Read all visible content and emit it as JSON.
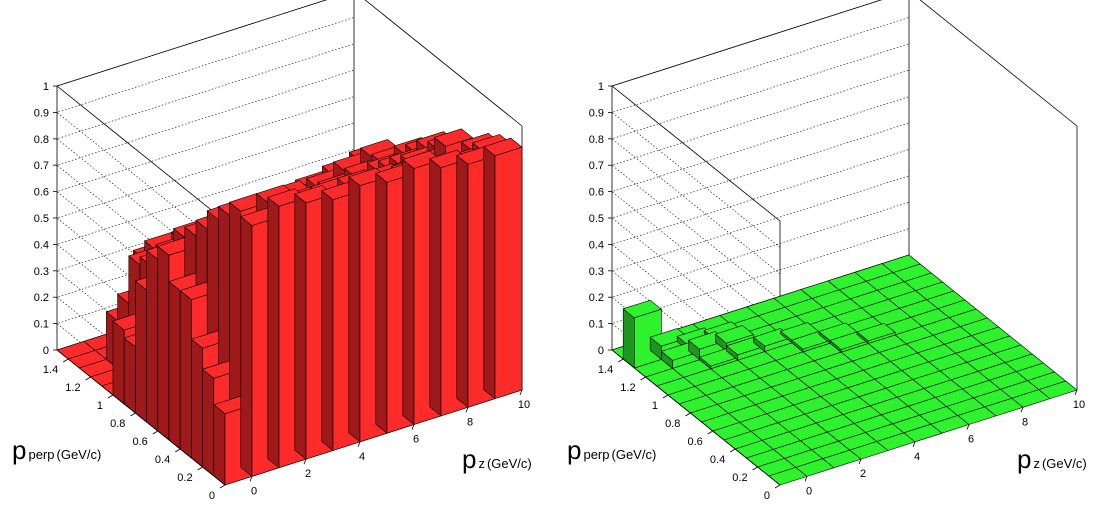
{
  "chart_data": [
    {
      "type": "lego3d",
      "xlabel": {
        "base": "p",
        "sub": "z",
        "unit": "(GeV/c)"
      },
      "ylabel": {
        "base": "p",
        "sub": "perp",
        "unit": "(GeV/c)"
      },
      "x_ticks": [
        "0",
        "2",
        "4",
        "6",
        "8",
        "10"
      ],
      "y_ticks": [
        "0",
        "0.2",
        "0.4",
        "0.6",
        "0.8",
        "1",
        "1.2",
        "1.4"
      ],
      "z_ticks": [
        "0",
        "0.1",
        "0.2",
        "0.3",
        "0.4",
        "0.5",
        "0.6",
        "0.7",
        "0.8",
        "0.9",
        "1"
      ],
      "xlim": [
        -1,
        10
      ],
      "ylim": [
        0,
        1.5
      ],
      "zlim": [
        0,
        1
      ],
      "color": "#ff2a2a",
      "grid": true,
      "values": [
        [
          0.27,
          0.95,
          0.99,
          0.97,
          0.95,
          0.97,
          0.95,
          0.97,
          0.94,
          0.92,
          0.92
        ],
        [
          0.37,
          0.97,
          0.97,
          0.93,
          0.93,
          0.93,
          0.92,
          0.91,
          0.88,
          0.88,
          0.9
        ],
        [
          0.45,
          0.92,
          0.92,
          0.92,
          0.85,
          0.86,
          0.8,
          0.84,
          0.78,
          0.92,
          0.87
        ],
        [
          0.6,
          0.87,
          0.87,
          0.82,
          0.78,
          0.72,
          0.78,
          0.7,
          0.79,
          0.8,
          0.8
        ],
        [
          0.6,
          0.8,
          0.78,
          0.74,
          0.72,
          0.7,
          0.7,
          0.73,
          0.77,
          0.78,
          0.78
        ],
        [
          0.7,
          0.74,
          0.73,
          0.7,
          0.67,
          0.65,
          0.66,
          0.69,
          0.7,
          0.75,
          0.77
        ],
        [
          0.65,
          0.7,
          0.68,
          0.65,
          0.62,
          0.6,
          0.62,
          0.63,
          0.67,
          0.71,
          0.74
        ],
        [
          0.5,
          0.6,
          0.62,
          0.58,
          0.58,
          0.55,
          0.58,
          0.59,
          0.62,
          0.66,
          0.69
        ],
        [
          0.25,
          0.51,
          0.52,
          0.52,
          0.52,
          0.52,
          0.55,
          0.56,
          0.58,
          0.62,
          0.65
        ],
        [
          0.28,
          0.49,
          0.47,
          0.45,
          0.45,
          0.44,
          0.46,
          0.47,
          0.5,
          0.54,
          0.57
        ],
        [
          0.0,
          0.46,
          0.47,
          0.46,
          0.45,
          0.46,
          0.48,
          0.49,
          0.51,
          0.53,
          0.55
        ],
        [
          0.0,
          0.28,
          0.45,
          0.45,
          0.44,
          0.45,
          0.46,
          0.47,
          0.49,
          0.52,
          0.54
        ],
        [
          0.0,
          0.18,
          0.38,
          0.38,
          0.38,
          0.4,
          0.42,
          0.43,
          0.45,
          0.47,
          0.49
        ],
        [
          0.0,
          0.0,
          0.1,
          0.12,
          0.1,
          0.12,
          0.12,
          0.14,
          0.14,
          0.16,
          0.18
        ],
        [
          0.0,
          0.0,
          0.0,
          0.02,
          0.02,
          0.02,
          0.02,
          0.02,
          0.02,
          0.02,
          0.02
        ]
      ]
    },
    {
      "type": "lego3d",
      "xlabel": {
        "base": "p",
        "sub": "z",
        "unit": "(GeV/c)"
      },
      "ylabel": {
        "base": "p",
        "sub": "perp",
        "unit": "(GeV/c)"
      },
      "x_ticks": [
        "0",
        "2",
        "4",
        "6",
        "8",
        "10"
      ],
      "y_ticks": [
        "0",
        "0.2",
        "0.4",
        "0.6",
        "0.8",
        "1",
        "1.2",
        "1.4"
      ],
      "z_ticks": [
        "0",
        "0.1",
        "0.2",
        "0.3",
        "0.4",
        "0.5",
        "0.6",
        "0.7",
        "0.8",
        "0.9",
        "1"
      ],
      "xlim": [
        -1,
        10
      ],
      "ylim": [
        0,
        1.5
      ],
      "zlim": [
        0,
        1
      ],
      "color": "#2ef22e",
      "grid": true,
      "values": [
        [
          0,
          0,
          0,
          0,
          0,
          0,
          0,
          0,
          0,
          0,
          0
        ],
        [
          0,
          0,
          0,
          0,
          0,
          0,
          0,
          0,
          0,
          0,
          0
        ],
        [
          0,
          0,
          0,
          0,
          0,
          0,
          0,
          0,
          0,
          0,
          0
        ],
        [
          0,
          0,
          0,
          0,
          0,
          0,
          0,
          0,
          0,
          0,
          0
        ],
        [
          0,
          0,
          0,
          0,
          0,
          0,
          0,
          0,
          0,
          0,
          0
        ],
        [
          0,
          0,
          0,
          0,
          0,
          0,
          0,
          0,
          0,
          0,
          0
        ],
        [
          0,
          0,
          0,
          0,
          0,
          0,
          0,
          0,
          0,
          0,
          0
        ],
        [
          0,
          0,
          0,
          0,
          0,
          0,
          0,
          0,
          0,
          0,
          0
        ],
        [
          0,
          0,
          0,
          0,
          0,
          0,
          0,
          0,
          0,
          0,
          0
        ],
        [
          0,
          0,
          0,
          0,
          0,
          0,
          0.01,
          0.01,
          0,
          0,
          0
        ],
        [
          0,
          0,
          0,
          0,
          0,
          0.01,
          0.01,
          0,
          0,
          0,
          0
        ],
        [
          0,
          0,
          0.01,
          0.02,
          0.02,
          0.01,
          0,
          0,
          0,
          0,
          0
        ],
        [
          0,
          0.03,
          0.04,
          0.03,
          0,
          0,
          0,
          0,
          0,
          0,
          0
        ],
        [
          0.19,
          0.05,
          0.02,
          0.01,
          0,
          0,
          0,
          0,
          0,
          0,
          0
        ],
        [
          0,
          0,
          0,
          0,
          0,
          0,
          0,
          0,
          0,
          0,
          0
        ]
      ]
    }
  ]
}
